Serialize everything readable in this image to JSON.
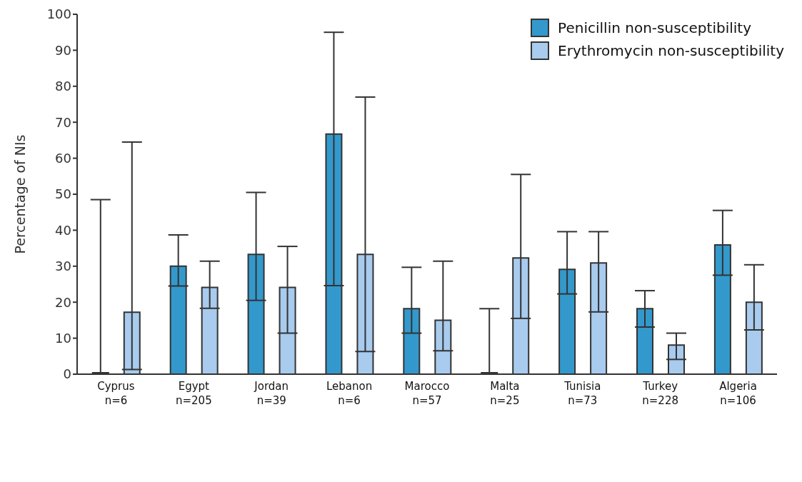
{
  "chart_data": {
    "type": "bar",
    "ylabel": "Percentage of NIs",
    "categories": [
      "Cyprus\nn=6",
      "Egypt\nn=205",
      "Jordan\nn=39",
      "Lebanon\nn=6",
      "Marocco\nn=57",
      "Malta\nn=25",
      "Tunisia\nn=73",
      "Turkey\nn=228",
      "Algeria\nn=106"
    ],
    "series": [
      {
        "name": "Penicillin non-susceptibility",
        "color": "#3399cc",
        "values": [
          0,
          30,
          33.3,
          66.7,
          18.2,
          0,
          29.1,
          18.2,
          35.9
        ],
        "errors": [
          [
            0,
            48.5
          ],
          [
            24.5,
            38.7
          ],
          [
            20.5,
            50.5
          ],
          [
            24.6,
            95
          ],
          [
            11.4,
            29.7
          ],
          [
            0,
            18.2
          ],
          [
            22.3,
            39.6
          ],
          [
            13.1,
            23.2
          ],
          [
            27.5,
            45.5
          ]
        ]
      },
      {
        "name": "Erythromycin non-susceptibility",
        "color": "#a8cbee",
        "values": [
          17.2,
          24.1,
          24.1,
          33.3,
          15,
          32.3,
          30.9,
          8.1,
          20
        ],
        "errors": [
          [
            1.3,
            64.5
          ],
          [
            18.3,
            31.4
          ],
          [
            11.4,
            35.5
          ],
          [
            6.3,
            77
          ],
          [
            6.5,
            31.4
          ],
          [
            15.5,
            55.5
          ],
          [
            17.3,
            39.6
          ],
          [
            4.1,
            11.4
          ],
          [
            12.3,
            30.4
          ]
        ]
      }
    ],
    "ylim": [
      0,
      100
    ],
    "yticks": [
      0,
      10,
      20,
      30,
      40,
      50,
      60,
      70,
      80,
      90,
      100
    ],
    "grid": false,
    "legend": "top right"
  }
}
